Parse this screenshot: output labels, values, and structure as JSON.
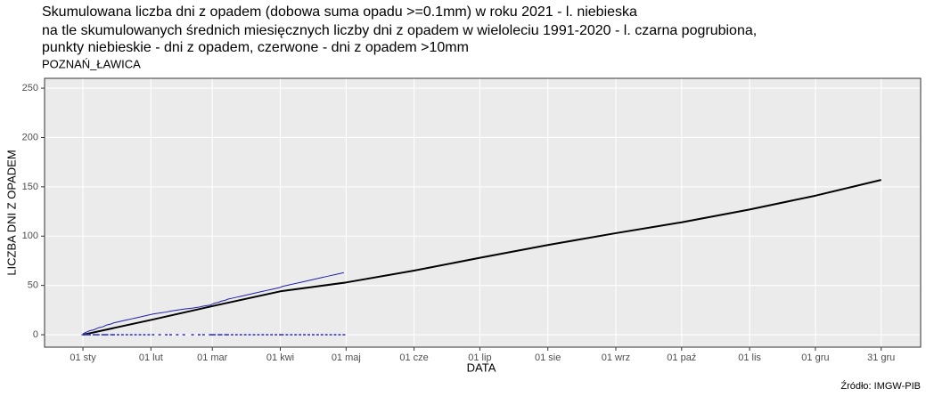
{
  "chart_data": {
    "type": "line",
    "title": [
      "Skumulowana liczba dni z opadem (dobowa suma opadu >=0.1mm) w roku 2021 - l. niebieska",
      "na tle skumulowanych średnich miesięcznych liczby dni z opadem w wieloleciu 1991-2020 - l. czarna pogrubiona,",
      "punkty niebieskie - dni z opadem, czerwone - dni z opadem >10mm"
    ],
    "subtitle": "POZNAŃ_ŁAWICA",
    "x_label": "DATA",
    "y_label": "LICZBA DNI Z OPADEM",
    "source": "Źródło: IMGW-PIB",
    "xlim": [
      -17.5,
      382
    ],
    "ylim": [
      -12.6,
      260
    ],
    "xticks": [
      {
        "value": 0,
        "label": "01 sty"
      },
      {
        "value": 31,
        "label": "01 lut"
      },
      {
        "value": 59,
        "label": "01 mar"
      },
      {
        "value": 90,
        "label": "01 kwi"
      },
      {
        "value": 120,
        "label": "01 maj"
      },
      {
        "value": 151,
        "label": "01 cze"
      },
      {
        "value": 181,
        "label": "01 lip"
      },
      {
        "value": 212,
        "label": "01 sie"
      },
      {
        "value": 243,
        "label": "01 wrz"
      },
      {
        "value": 273,
        "label": "01 paź"
      },
      {
        "value": 304,
        "label": "01 lis"
      },
      {
        "value": 334,
        "label": "01 gru"
      },
      {
        "value": 364,
        "label": "31 gru"
      }
    ],
    "yticks": [
      0,
      50,
      100,
      150,
      200,
      250
    ],
    "grid": true,
    "series": [
      {
        "kind": "line",
        "color": "#000000",
        "width": 2,
        "x": [
          0,
          31,
          59,
          90,
          120,
          151,
          181,
          212,
          243,
          273,
          304,
          334,
          364
        ],
        "values": [
          0,
          15,
          29,
          44,
          53,
          65,
          78,
          91,
          103,
          114,
          127,
          141,
          157
        ]
      },
      {
        "kind": "line",
        "color": "#1f1fa8",
        "width": 1,
        "x": [
          0,
          1,
          2,
          3,
          5,
          6,
          7,
          9,
          10,
          11,
          13,
          14,
          16,
          18,
          20,
          22,
          24,
          26,
          28,
          30,
          32,
          35,
          38,
          40,
          43,
          46,
          50,
          53,
          55,
          58,
          59,
          60,
          62,
          63,
          65,
          66,
          68,
          70,
          72,
          74,
          76,
          78,
          80,
          82,
          84,
          86,
          88,
          90,
          91,
          93,
          95,
          97,
          99,
          101,
          103,
          105,
          107,
          109,
          111,
          113,
          115,
          117,
          119
        ],
        "values": [
          1,
          2,
          3,
          4,
          5,
          6,
          7,
          8,
          9,
          10,
          11,
          12,
          13,
          14,
          15,
          16,
          17,
          18,
          19,
          20,
          21,
          22,
          23,
          24,
          25,
          26,
          27,
          28,
          29,
          30,
          31,
          32,
          33,
          34,
          35,
          36,
          37,
          38,
          39,
          40,
          41,
          42,
          43,
          44,
          45,
          46,
          47,
          48,
          49,
          50,
          51,
          52,
          53,
          54,
          55,
          56,
          57,
          58,
          59,
          60,
          61,
          62,
          63
        ]
      },
      {
        "kind": "points",
        "color": "#3a3ad0",
        "x": [
          0,
          1,
          2,
          3,
          5,
          6,
          7,
          9,
          10,
          11,
          13,
          14,
          16,
          18,
          20,
          22,
          24,
          26,
          28,
          30,
          32,
          35,
          38,
          40,
          43,
          46,
          50,
          53,
          55,
          58,
          59,
          60,
          62,
          63,
          65,
          66,
          68,
          70,
          72,
          74,
          76,
          78,
          80,
          82,
          84,
          86,
          88,
          90,
          91,
          93,
          95,
          97,
          99,
          101,
          103,
          105,
          107,
          109,
          111,
          113,
          115,
          117,
          119
        ],
        "values": [
          0,
          0,
          0,
          0,
          0,
          0,
          0,
          0,
          0,
          0,
          0,
          0,
          0,
          0,
          0,
          0,
          0,
          0,
          0,
          0,
          0,
          0,
          0,
          0,
          0,
          0,
          0,
          0,
          0,
          0,
          0,
          0,
          0,
          0,
          0,
          0,
          0,
          0,
          0,
          0,
          0,
          0,
          0,
          0,
          0,
          0,
          0,
          0,
          0,
          0,
          0,
          0,
          0,
          0,
          0,
          0,
          0,
          0,
          0,
          0,
          0,
          0,
          0
        ]
      }
    ]
  }
}
